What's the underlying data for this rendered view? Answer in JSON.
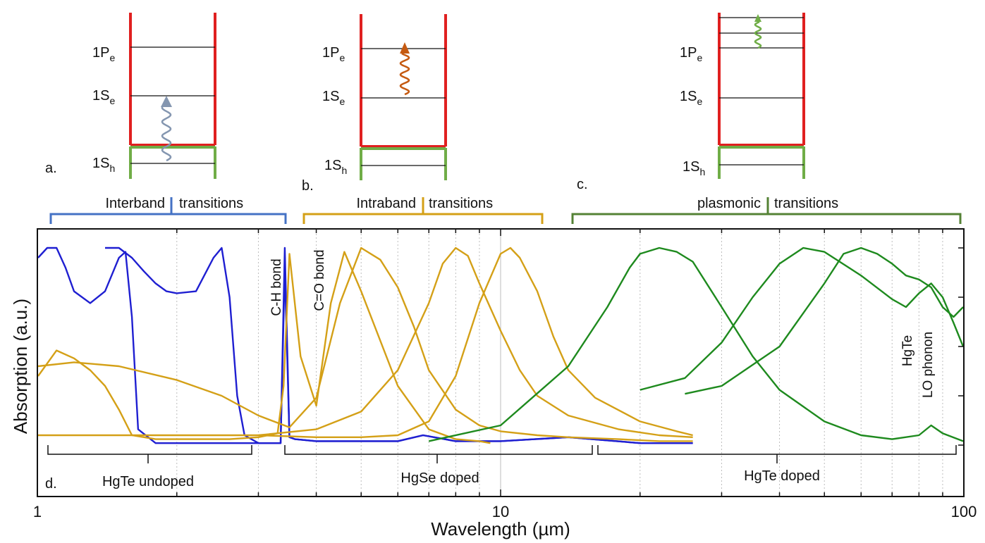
{
  "diagrams": [
    {
      "panel_label": "a.",
      "levels": [
        {
          "label": "1P",
          "sub": "e"
        },
        {
          "label": "1S",
          "sub": "e"
        },
        {
          "label": "1S",
          "sub": "h"
        }
      ],
      "transition": "interband",
      "arrow_color": "#8496b0"
    },
    {
      "panel_label": "b.",
      "levels": [
        {
          "label": "1P",
          "sub": "e"
        },
        {
          "label": "1S",
          "sub": "e"
        },
        {
          "label": "1S",
          "sub": "h"
        }
      ],
      "transition": "intraband",
      "arrow_color": "#c55a11"
    },
    {
      "panel_label": "c.",
      "levels": [
        {
          "label": "1P",
          "sub": "e"
        },
        {
          "label": "1S",
          "sub": "e"
        },
        {
          "label": "1S",
          "sub": "h"
        }
      ],
      "transition": "plasmonic",
      "arrow_color": "#70ad47"
    }
  ],
  "colors": {
    "well": "#e02020",
    "valence": "#70ad47",
    "interband": "#4472c4",
    "intraband": "#d4a017",
    "plasmonic": "#548235",
    "hgte_curve": "#1f1fd1",
    "hgse_curve": "#d4a017",
    "hgte_doped_curve": "#1e8a1e"
  },
  "regions": [
    {
      "left": "Interband",
      "right": "transitions",
      "color": "#4472c4"
    },
    {
      "left": "Intraband",
      "right": "transitions",
      "color": "#d4a017"
    },
    {
      "left": "plasmonic",
      "right": "transitions",
      "color": "#548235"
    }
  ],
  "chart_data": {
    "type": "line",
    "xlabel": "Wavelength (µm)",
    "ylabel": "Absorption (a.u.)",
    "xscale": "log",
    "xlim": [
      1,
      100
    ],
    "ylim": [
      0,
      1
    ],
    "x_ticks": [
      "1",
      "10",
      "100"
    ],
    "grid": "vertical minor, dotted",
    "panel_label": "d.",
    "annotations": [
      "C-H bond",
      "C=O bond",
      "HgTe",
      "LO phonon"
    ],
    "sample_groups": [
      {
        "label": "HgTe undoped"
      },
      {
        "label": "HgSe doped"
      },
      {
        "label": "HgTe doped"
      }
    ],
    "series": [
      {
        "group": "HgTe undoped",
        "x": [
          1.0,
          1.05,
          1.1,
          1.15,
          1.2,
          1.3,
          1.4,
          1.5,
          1.55,
          1.6,
          1.65,
          1.8,
          2.0,
          2.2,
          2.4,
          2.5,
          2.6,
          2.7,
          2.8,
          3.0,
          3.2,
          3.35,
          3.42,
          3.5,
          3.6,
          4.0,
          6.0,
          6.8,
          8.0,
          10.0,
          14.0,
          20.0,
          26.0
        ],
        "y": [
          0.95,
          1.0,
          1.0,
          0.9,
          0.78,
          0.72,
          0.78,
          0.95,
          0.98,
          0.65,
          0.08,
          0.01,
          0.01,
          0.01,
          0.01,
          0.01,
          0.01,
          0.01,
          0.01,
          0.01,
          0.01,
          0.01,
          1.0,
          0.04,
          0.03,
          0.02,
          0.02,
          0.05,
          0.02,
          0.02,
          0.04,
          0.01,
          0.01
        ]
      },
      {
        "group": "HgTe undoped",
        "x": [
          1.4,
          1.5,
          1.6,
          1.7,
          1.8,
          1.9,
          2.0,
          2.2,
          2.4,
          2.5,
          2.6,
          2.7,
          2.8,
          3.0,
          3.2,
          3.35,
          3.42,
          3.5,
          3.6,
          4.0,
          6.0,
          6.8,
          8.0,
          10.0,
          14.0,
          20.0,
          26.0
        ],
        "y": [
          1.0,
          1.0,
          0.95,
          0.88,
          0.82,
          0.78,
          0.77,
          0.78,
          0.95,
          1.0,
          0.75,
          0.25,
          0.05,
          0.01,
          0.01,
          0.01,
          0.9,
          0.04,
          0.03,
          0.02,
          0.02,
          0.05,
          0.02,
          0.02,
          0.04,
          0.01,
          0.01
        ]
      },
      {
        "group": "HgSe doped",
        "x": [
          1.0,
          1.1,
          1.2,
          1.3,
          1.4,
          1.5,
          1.6,
          1.8,
          2.0,
          2.3,
          2.6,
          3.0,
          3.3,
          3.4,
          3.5,
          3.7,
          4.0,
          4.3,
          4.6,
          5.0,
          6.0,
          7.0,
          8.0,
          9.0,
          9.5
        ],
        "y": [
          0.35,
          0.48,
          0.44,
          0.38,
          0.3,
          0.18,
          0.05,
          0.03,
          0.03,
          0.03,
          0.03,
          0.04,
          0.06,
          0.3,
          0.97,
          0.45,
          0.2,
          0.72,
          0.98,
          0.78,
          0.3,
          0.08,
          0.03,
          0.02,
          0.01
        ]
      },
      {
        "group": "HgSe doped",
        "x": [
          1.0,
          1.2,
          1.5,
          2.0,
          2.5,
          3.0,
          3.5,
          4.0,
          4.5,
          5.0,
          5.5,
          6.0,
          6.5,
          7.0,
          8.0,
          9.0,
          10.0,
          12.0,
          14.0,
          18.0,
          22.0,
          26.0
        ],
        "y": [
          0.4,
          0.42,
          0.4,
          0.33,
          0.25,
          0.15,
          0.09,
          0.24,
          0.72,
          1.0,
          0.94,
          0.8,
          0.6,
          0.38,
          0.18,
          0.1,
          0.07,
          0.05,
          0.04,
          0.03,
          0.02,
          0.02
        ]
      },
      {
        "group": "HgSe doped",
        "x": [
          1.0,
          2.0,
          3.0,
          4.0,
          5.0,
          6.0,
          7.0,
          7.5,
          8.0,
          8.5,
          9.0,
          10.0,
          11.0,
          12.0,
          14.0,
          18.0,
          22.0,
          26.0
        ],
        "y": [
          0.05,
          0.05,
          0.05,
          0.08,
          0.17,
          0.38,
          0.72,
          0.92,
          1.0,
          0.96,
          0.82,
          0.58,
          0.38,
          0.25,
          0.15,
          0.08,
          0.05,
          0.04
        ]
      },
      {
        "group": "HgSe doped",
        "x": [
          3.0,
          4.0,
          5.0,
          6.0,
          7.0,
          8.0,
          9.0,
          10.0,
          10.5,
          11.0,
          12.0,
          13.0,
          14.0,
          16.0,
          20.0,
          24.0,
          26.0
        ],
        "y": [
          0.05,
          0.04,
          0.04,
          0.05,
          0.12,
          0.35,
          0.72,
          0.97,
          1.0,
          0.95,
          0.78,
          0.55,
          0.38,
          0.24,
          0.12,
          0.07,
          0.05
        ]
      },
      {
        "group": "HgTe doped",
        "x": [
          7.0,
          10.0,
          14.0,
          17.0,
          19.0,
          20.0,
          22.0,
          24.0,
          26.0,
          30.0,
          35.0,
          40.0,
          50.0,
          60.0,
          70.0,
          80.0,
          85.0,
          90.0,
          100.0
        ],
        "y": [
          0.02,
          0.1,
          0.4,
          0.7,
          0.9,
          0.97,
          1.0,
          0.98,
          0.93,
          0.7,
          0.45,
          0.28,
          0.12,
          0.05,
          0.03,
          0.05,
          0.1,
          0.06,
          0.02
        ]
      },
      {
        "group": "HgTe doped",
        "x": [
          20.0,
          25.0,
          30.0,
          35.0,
          40.0,
          45.0,
          50.0,
          60.0,
          70.0,
          75.0,
          80.0,
          85.0,
          90.0,
          95.0,
          100.0
        ],
        "y": [
          0.28,
          0.34,
          0.52,
          0.75,
          0.92,
          1.0,
          0.98,
          0.86,
          0.74,
          0.7,
          0.77,
          0.82,
          0.75,
          0.62,
          0.5
        ]
      },
      {
        "group": "HgTe doped",
        "x": [
          25.0,
          30.0,
          40.0,
          50.0,
          55.0,
          60.0,
          65.0,
          70.0,
          75.0,
          80.0,
          85.0,
          90.0,
          95.0,
          100.0
        ],
        "y": [
          0.26,
          0.3,
          0.5,
          0.82,
          0.97,
          1.0,
          0.97,
          0.92,
          0.86,
          0.84,
          0.8,
          0.7,
          0.65,
          0.7
        ]
      }
    ]
  }
}
